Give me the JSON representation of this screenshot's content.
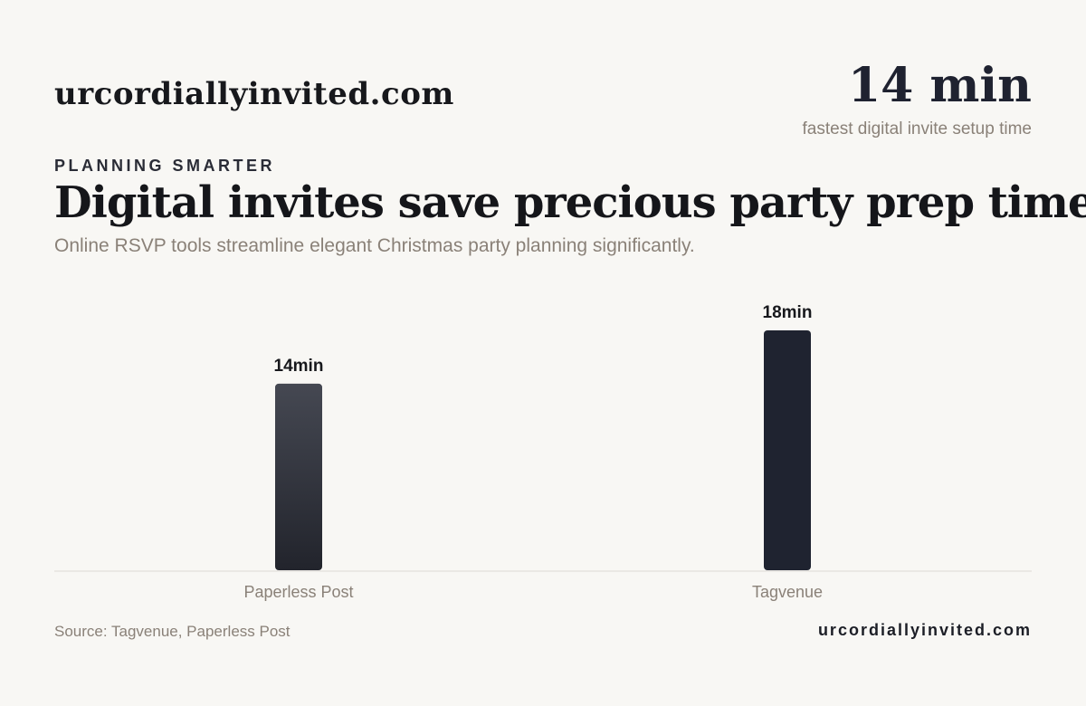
{
  "brand": "urcordiallyinvited.com",
  "headline_stat": {
    "value": "14 min",
    "caption": "fastest digital invite setup time"
  },
  "eyebrow": "PLANNING SMARTER",
  "title": "Digital invites save precious party prep time",
  "subtitle": "Online RSVP tools streamline elegant Christmas party planning significantly.",
  "footer": {
    "source": "Source: Tagvenue, Paperless Post",
    "brand": "urcordiallyinvited.com"
  },
  "colors": {
    "background": "#f8f7f4",
    "bar_primary": "#1f2330",
    "bar_secondary_top": "#454852",
    "bar_secondary_bottom": "#22242c",
    "axis": "#dcd9d4",
    "muted_text": "#8a8178"
  },
  "chart_data": {
    "type": "bar",
    "categories": [
      "Paperless Post",
      "Tagvenue"
    ],
    "values": [
      14,
      18
    ],
    "value_labels": [
      "14min",
      "18min"
    ],
    "unit": "min",
    "title": "",
    "xlabel": "",
    "ylabel": "",
    "ylim": [
      0,
      18
    ],
    "grid": false,
    "legend": "none"
  }
}
